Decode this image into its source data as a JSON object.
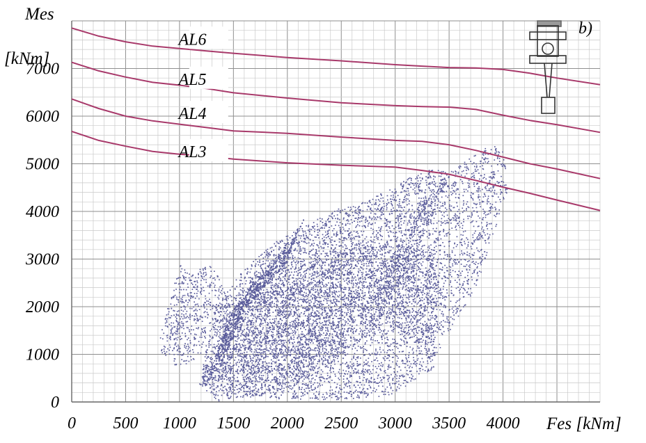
{
  "chart_data": {
    "type": "scatter",
    "panel_label": "b)",
    "ylabel_top": "Mes",
    "ylabel_unit": "[kNm]",
    "xlabel": "Fes [kNm]",
    "xlim": [
      0,
      4900
    ],
    "ylim": [
      0,
      8000
    ],
    "x_ticks": [
      "0",
      "500",
      "1000",
      "1500",
      "2000",
      "2500",
      "3000",
      "3500",
      "4000"
    ],
    "y_ticks": [
      "0",
      "1000",
      "2000",
      "3000",
      "4000",
      "5000",
      "6000",
      "7000"
    ],
    "grid": true,
    "colors": {
      "curves": "#a8396a",
      "points": "#5c5e9c",
      "grid_major": "#8e8e8e",
      "grid_minor": "#c9c9c9"
    },
    "series": [
      {
        "name": "AL6",
        "x": [
          0,
          250,
          500,
          750,
          1000,
          1250,
          1500,
          2000,
          2500,
          3000,
          3250,
          3500,
          3750,
          4000,
          4250,
          4500,
          4900
        ],
        "y": [
          7850,
          7680,
          7560,
          7470,
          7420,
          7370,
          7320,
          7230,
          7160,
          7080,
          7050,
          7020,
          7010,
          6980,
          6900,
          6800,
          6660
        ]
      },
      {
        "name": "AL5",
        "x": [
          0,
          250,
          500,
          750,
          1000,
          1250,
          1500,
          2000,
          2500,
          3000,
          3250,
          3500,
          3750,
          4000,
          4250,
          4500,
          4900
        ],
        "y": [
          7130,
          6950,
          6820,
          6710,
          6650,
          6580,
          6490,
          6380,
          6280,
          6220,
          6200,
          6190,
          6140,
          6020,
          5910,
          5820,
          5660
        ]
      },
      {
        "name": "AL4",
        "x": [
          0,
          250,
          500,
          750,
          1000,
          1250,
          1500,
          2000,
          2500,
          3000,
          3250,
          3500,
          3750,
          4000,
          4250,
          4500,
          4900
        ],
        "y": [
          6360,
          6160,
          6000,
          5900,
          5830,
          5760,
          5690,
          5640,
          5560,
          5490,
          5470,
          5400,
          5280,
          5140,
          5000,
          4890,
          4690
        ]
      },
      {
        "name": "AL3",
        "x": [
          0,
          250,
          500,
          750,
          1000,
          1250,
          1500,
          2000,
          2500,
          3000,
          3250,
          3500,
          3750,
          4000,
          4250,
          4500,
          4900
        ],
        "y": [
          5680,
          5490,
          5370,
          5260,
          5200,
          5160,
          5100,
          5020,
          4970,
          4930,
          4860,
          4780,
          4650,
          4510,
          4380,
          4240,
          4020
        ]
      }
    ],
    "scatter_regions": [
      {
        "x": [
          1180,
          1330,
          1600,
          1900,
          2150,
          2450,
          2750,
          3000,
          3130,
          3330,
          3520,
          3260,
          2800,
          2300,
          1800,
          1350,
          1180
        ],
        "y": [
          380,
          2100,
          2800,
          3400,
          3700,
          4050,
          4250,
          4550,
          4720,
          4900,
          4850,
          3500,
          1500,
          650,
          150,
          30,
          380
        ],
        "n": 4500
      },
      {
        "x": [
          1180,
          1430,
          1640,
          2000,
          2450,
          2950,
          3350,
          3400,
          3350,
          2950,
          2400,
          1850,
          1400,
          1180
        ],
        "y": [
          430,
          1800,
          2400,
          2900,
          3200,
          3300,
          3200,
          2500,
          700,
          150,
          40,
          80,
          230,
          430
        ],
        "n": 3500
      },
      {
        "x": [
          1250,
          1450,
          1700,
          1950,
          2150,
          1980,
          1620,
          1400,
          1250
        ],
        "y": [
          450,
          1800,
          2600,
          3200,
          3850,
          2900,
          2000,
          900,
          450
        ],
        "n": 1500
      },
      {
        "x": [
          2700,
          3350,
          3750,
          3900,
          4000,
          4050,
          3750,
          3350,
          2900,
          2700
        ],
        "y": [
          2000,
          4550,
          5250,
          5400,
          5300,
          4500,
          2450,
          900,
          1800,
          2000
        ],
        "n": 1600
      },
      {
        "x": [
          820,
          1100,
          1300,
          1500,
          1250,
          1000,
          820
        ],
        "y": [
          1050,
          2700,
          2950,
          1900,
          1100,
          700,
          1050
        ],
        "n": 420
      },
      {
        "x": [
          800,
          1000,
          1150,
          1000,
          800
        ],
        "y": [
          1300,
          2900,
          2600,
          1400,
          1300
        ],
        "n": 140
      }
    ]
  }
}
